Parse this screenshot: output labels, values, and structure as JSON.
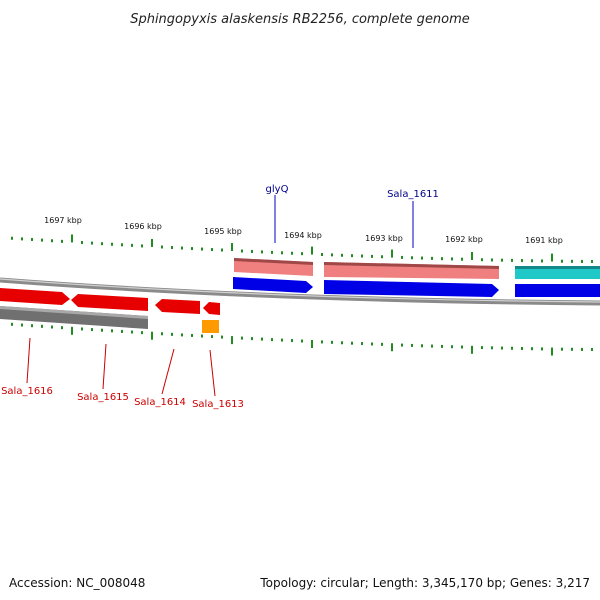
{
  "title": "Sphingopyxis alaskensis RB2256, complete genome",
  "footer": {
    "accession": "Accession: NC_008048",
    "summary": "Topology: circular; Length: 3,345,170 bp; Genes: 3,217"
  },
  "scale_ticks": [
    {
      "label": "1697 kbp"
    },
    {
      "label": "1696 kbp"
    },
    {
      "label": "1695 kbp"
    },
    {
      "label": "1694 kbp"
    },
    {
      "label": "1693 kbp"
    },
    {
      "label": "1692 kbp"
    },
    {
      "label": "1691 kbp"
    }
  ],
  "gene_labels": {
    "forward": [
      {
        "name": "glyQ"
      },
      {
        "name": "Sala_1611"
      }
    ],
    "reverse": [
      {
        "name": "Sala_1616"
      },
      {
        "name": "Sala_1615"
      },
      {
        "name": "Sala_1614"
      },
      {
        "name": "Sala_1613"
      }
    ]
  },
  "colors": {
    "backbone": "#8a8a8a",
    "forward_cds": "#0000e6",
    "reverse_cds": "#e60000",
    "forward_gene": "#f08080",
    "reverse_gene": "#707070",
    "misc_feature": "#20c8c8",
    "rna_feature": "#ff9900",
    "tick": "#228b22",
    "forward_label": "#00008b",
    "reverse_label": "#cc0000"
  }
}
